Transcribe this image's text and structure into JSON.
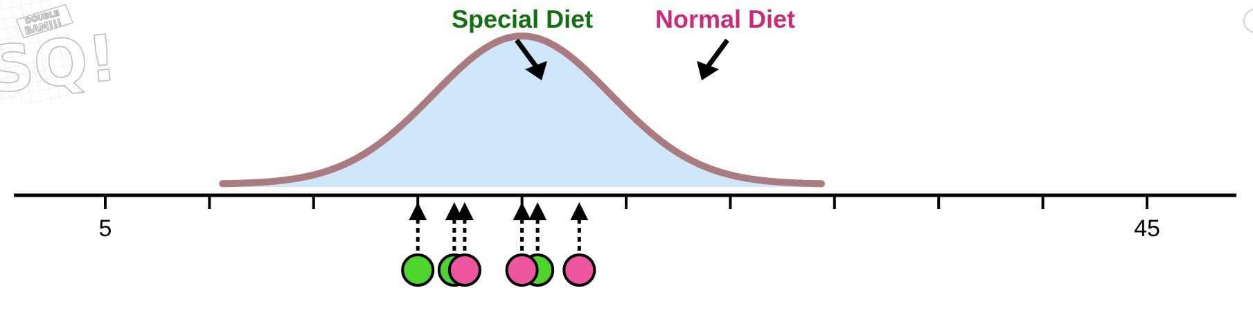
{
  "logo": {
    "banner_top": "DOUBLE",
    "banner_bottom": "BAM!!!",
    "letters": "SQ!"
  },
  "info_button": {
    "glyph": "i"
  },
  "axis": {
    "tick_labels": [
      "5",
      "45"
    ]
  },
  "legend": {
    "special": {
      "label": "Special Diet",
      "color": "#127012"
    },
    "normal": {
      "label": "Normal Diet",
      "color": "#cc2a78"
    }
  },
  "colors": {
    "axis": "#000000",
    "curve_stroke": "#b07a7a",
    "curve_fill": "#cfe6fb",
    "special_point": "#4ed42f",
    "normal_point": "#ee559f",
    "point_outline": "#000000",
    "arrow": "#000000"
  },
  "chart_data": {
    "type": "scatter",
    "xlim": [
      5,
      45
    ],
    "tick_values": [
      5,
      9,
      13,
      17,
      21,
      25,
      29,
      33,
      37,
      41,
      45
    ],
    "curve": {
      "type": "normal",
      "mean": 21,
      "sd": 3.4,
      "x_range": [
        9.5,
        32.5
      ]
    },
    "series": [
      {
        "values": [
          17,
          18.4,
          21.6
        ],
        "color_key": "special_point"
      },
      {
        "values": [
          18.8,
          21,
          23.2
        ],
        "color_key": "normal_point"
      }
    ]
  }
}
